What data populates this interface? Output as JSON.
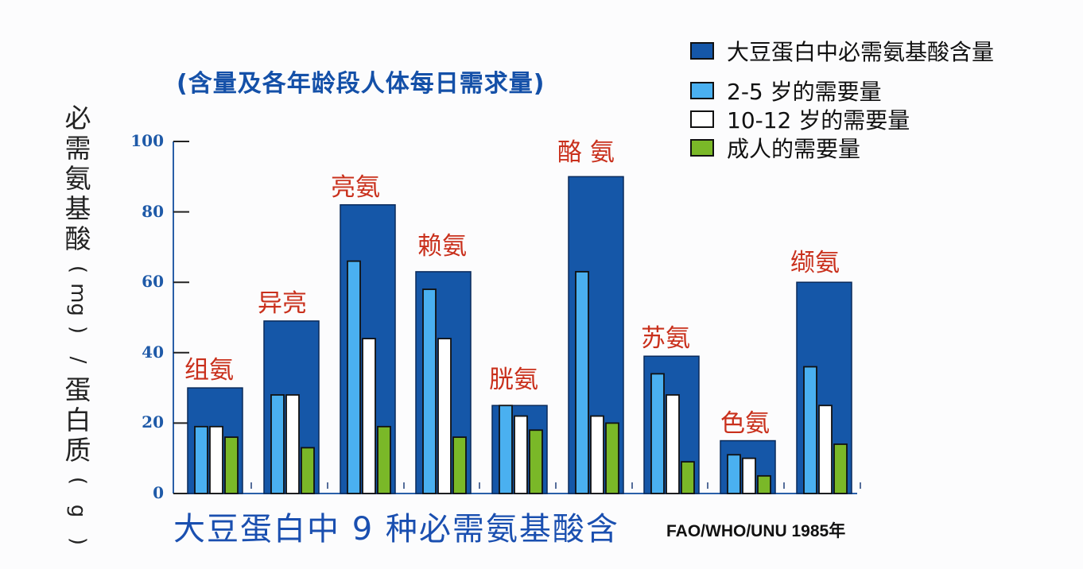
{
  "subtitle": "(含量及各年龄段人体每日需求量)",
  "ylabel_chars": [
    "必",
    "需",
    "氨",
    "基",
    "酸",
    "(",
    "mg",
    ")",
    "/",
    "蛋",
    "白",
    "质",
    "(",
    "g",
    ")"
  ],
  "legend": [
    {
      "label": "大豆蛋白中必需氨基酸含量",
      "color": "#1557a8"
    },
    {
      "label": "2-5 岁的需要量",
      "color": "#4ab0f0"
    },
    {
      "label": "10-12 岁的需要量",
      "color": "#ffffff"
    },
    {
      "label": "成人的需要量",
      "color": "#7ab828"
    }
  ],
  "bottom_title": "大豆蛋白中 9 种必需氨基酸含",
  "source": "FAO/WHO/UNU  1985年",
  "chart_data": {
    "type": "bar",
    "title": "大豆蛋白中 9 种必需氨基酸含量 (含量及各年龄段人体每日需求量)",
    "xlabel": "",
    "ylabel": "必需氨基酸(mg)/蛋白质(g)",
    "ylim": [
      0,
      100
    ],
    "yticks": [
      0,
      20,
      40,
      60,
      80,
      100
    ],
    "grid": false,
    "legend_position": "top-right",
    "categories": [
      "组氨",
      "异亮",
      "亮氨",
      "赖氨",
      "胱氨",
      "酪 氨",
      "苏氨",
      "色氨",
      "缬氨"
    ],
    "series": [
      {
        "name": "大豆蛋白中必需氨基酸含量",
        "color": "#1557a8",
        "values": [
          30,
          49,
          82,
          63,
          25,
          90,
          39,
          15,
          60
        ]
      },
      {
        "name": "2-5 岁的需要量",
        "color": "#4ab0f0",
        "values": [
          19,
          28,
          66,
          58,
          25,
          63,
          34,
          11,
          36
        ]
      },
      {
        "name": "10-12 岁的需要量",
        "color": "#ffffff",
        "values": [
          19,
          28,
          44,
          44,
          22,
          22,
          28,
          10,
          25
        ]
      },
      {
        "name": "成人的需要量",
        "color": "#7ab828",
        "values": [
          16,
          13,
          19,
          16,
          18,
          20,
          9,
          5,
          14
        ]
      }
    ],
    "source": "FAO/WHO/UNU 1985年"
  }
}
